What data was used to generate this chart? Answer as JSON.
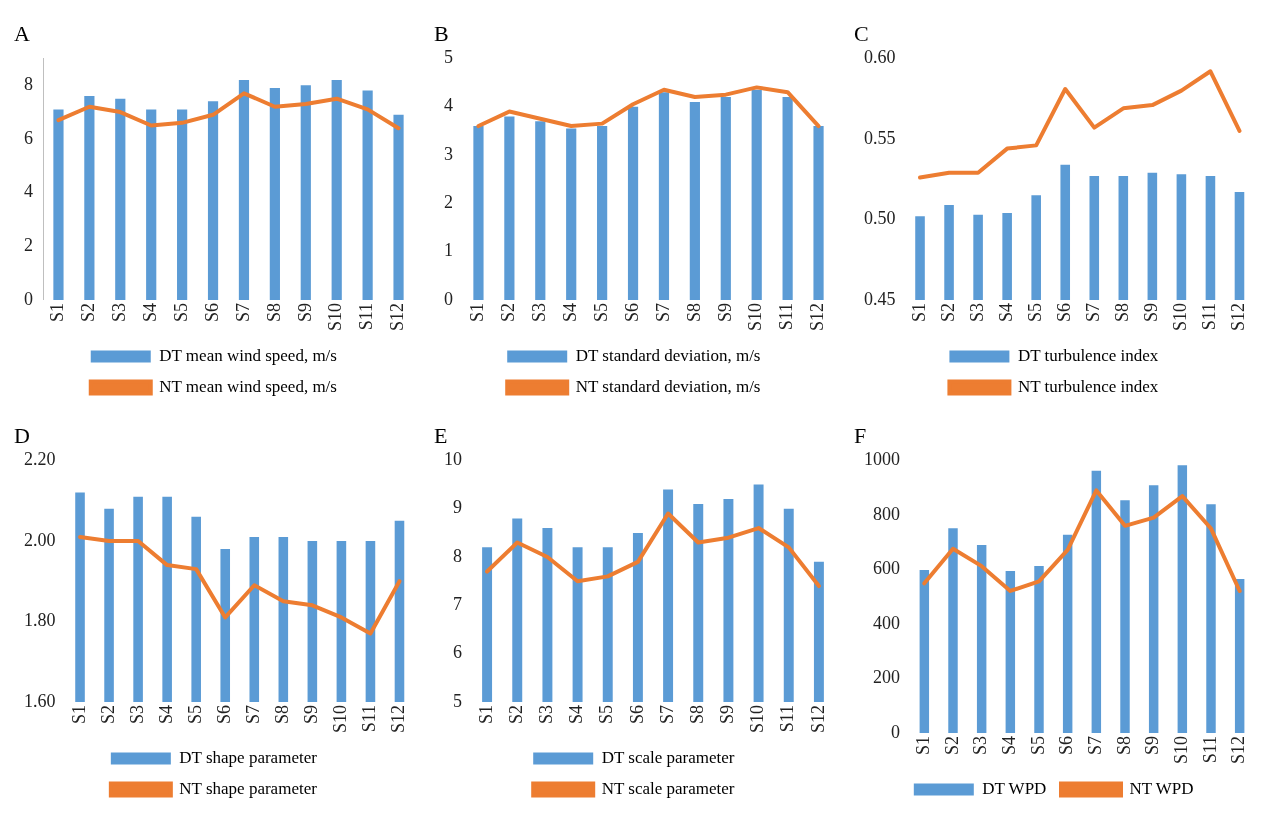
{
  "chart_data": [
    {
      "type": "bar",
      "title": "A",
      "categories": [
        "S1",
        "S2",
        "S3",
        "S4",
        "S5",
        "S6",
        "S7",
        "S8",
        "S9",
        "S10",
        "S11",
        "S12"
      ],
      "series": [
        {
          "name": "DT mean wind speed, m/s",
          "color": "#5b9bd5",
          "values": [
            7.1,
            7.6,
            7.5,
            7.1,
            7.1,
            7.4,
            8.2,
            7.9,
            8.0,
            8.2,
            7.8,
            6.9
          ]
        },
        {
          "name": "NT mean wind speed, m/s",
          "type": "line",
          "color": "#ed7d31",
          "values": [
            6.7,
            7.2,
            7.0,
            6.5,
            6.6,
            6.9,
            7.7,
            7.2,
            7.3,
            7.5,
            7.1,
            6.4
          ]
        }
      ],
      "ylim": [
        0,
        9
      ],
      "yticks": [
        0,
        2,
        4,
        6,
        8
      ],
      "legend": "bottom",
      "grid": false
    },
    {
      "type": "bar",
      "title": "B",
      "categories": [
        "S1",
        "S2",
        "S3",
        "S4",
        "S5",
        "S6",
        "S7",
        "S8",
        "S9",
        "S10",
        "S11",
        "S12"
      ],
      "series": [
        {
          "name": "DT standard deviation, m/s",
          "color": "#5b9bd5",
          "values": [
            3.6,
            3.8,
            3.7,
            3.55,
            3.6,
            4.0,
            4.3,
            4.1,
            4.2,
            4.35,
            4.2,
            3.6
          ]
        },
        {
          "name": "NT standard deviation, m/s",
          "type": "line",
          "color": "#ed7d31",
          "values": [
            3.6,
            3.9,
            3.75,
            3.6,
            3.65,
            4.05,
            4.35,
            4.2,
            4.25,
            4.4,
            4.3,
            3.6
          ]
        }
      ],
      "ylim": [
        0,
        5
      ],
      "yticks": [
        0,
        1,
        2,
        3,
        4,
        5
      ],
      "legend": "bottom",
      "grid": false
    },
    {
      "type": "bar",
      "title": "C",
      "categories": [
        "S1",
        "S2",
        "S3",
        "S4",
        "S5",
        "S6",
        "S7",
        "S8",
        "S9",
        "S10",
        "S11",
        "S12"
      ],
      "series": [
        {
          "name": "DT turbulence index",
          "color": "#5b9bd5",
          "values": [
            0.502,
            0.509,
            0.503,
            0.504,
            0.515,
            0.534,
            0.527,
            0.527,
            0.529,
            0.528,
            0.527,
            0.517
          ]
        },
        {
          "name": "NT turbulence index",
          "type": "line",
          "color": "#ed7d31",
          "values": [
            0.526,
            0.529,
            0.529,
            0.544,
            0.546,
            0.581,
            0.557,
            0.569,
            0.571,
            0.58,
            0.592,
            0.555
          ]
        }
      ],
      "ylim": [
        0.45,
        0.6
      ],
      "yticks": [
        {
          "value": 0.45,
          "label": "0.45"
        },
        {
          "value": 0.5,
          "label": "0.50"
        },
        {
          "value": 0.55,
          "label": "0.55"
        },
        {
          "value": 0.6,
          "label": "0.60"
        }
      ],
      "legend": "bottom",
      "grid": false
    },
    {
      "type": "bar",
      "title": "D",
      "categories": [
        "S1",
        "S2",
        "S3",
        "S4",
        "S5",
        "S6",
        "S7",
        "S8",
        "S9",
        "S10",
        "S11",
        "S12"
      ],
      "series": [
        {
          "name": "DT shape parameter",
          "color": "#5b9bd5",
          "values": [
            2.12,
            2.08,
            2.11,
            2.11,
            2.06,
            1.98,
            2.01,
            2.01,
            2.0,
            2.0,
            2.0,
            2.05
          ]
        },
        {
          "name": "NT shape parameter",
          "type": "line",
          "color": "#ed7d31",
          "values": [
            2.01,
            2.0,
            2.0,
            1.94,
            1.93,
            1.81,
            1.89,
            1.85,
            1.84,
            1.81,
            1.77,
            1.9
          ]
        }
      ],
      "ylim": [
        1.6,
        2.2
      ],
      "yticks": [
        {
          "value": 1.6,
          "label": "1.60"
        },
        {
          "value": 1.8,
          "label": "1.80"
        },
        {
          "value": 2.0,
          "label": "2.00"
        },
        {
          "value": 2.2,
          "label": "2.20"
        }
      ],
      "legend": "bottom",
      "grid": false
    },
    {
      "type": "bar",
      "title": "E",
      "categories": [
        "S1",
        "S2",
        "S3",
        "S4",
        "S5",
        "S6",
        "S7",
        "S8",
        "S9",
        "S10",
        "S11",
        "S12"
      ],
      "series": [
        {
          "name": "DT scale parameter",
          "color": "#5b9bd5",
          "values": [
            8.2,
            8.8,
            8.6,
            8.2,
            8.2,
            8.5,
            9.4,
            9.1,
            9.2,
            9.5,
            9.0,
            7.9
          ]
        },
        {
          "name": "NT scale parameter",
          "type": "line",
          "color": "#ed7d31",
          "values": [
            7.7,
            8.3,
            8.0,
            7.5,
            7.6,
            7.9,
            8.9,
            8.3,
            8.4,
            8.6,
            8.2,
            7.4
          ]
        }
      ],
      "ylim": [
        5,
        10
      ],
      "yticks": [
        5,
        6,
        7,
        8,
        9,
        10
      ],
      "legend": "bottom",
      "grid": false
    },
    {
      "type": "bar",
      "title": "F",
      "categories": [
        "S1",
        "S2",
        "S3",
        "S4",
        "S5",
        "S6",
        "S7",
        "S8",
        "S9",
        "S10",
        "S11",
        "S12"
      ],
      "series": [
        {
          "name": "DT WPD",
          "color": "#5b9bd5",
          "values": [
            598,
            751,
            690,
            594,
            613,
            727,
            962,
            854,
            909,
            982,
            839,
            565
          ]
        },
        {
          "name": "NT WPD",
          "type": "line",
          "color": "#ed7d31",
          "values": [
            549,
            676,
            612,
            521,
            556,
            672,
            890,
            760,
            790,
            869,
            750,
            521
          ]
        }
      ],
      "ylim": [
        0,
        1000
      ],
      "yticks": [
        0,
        200,
        400,
        600,
        800,
        1000
      ],
      "legend": "bottom",
      "grid": false
    }
  ]
}
